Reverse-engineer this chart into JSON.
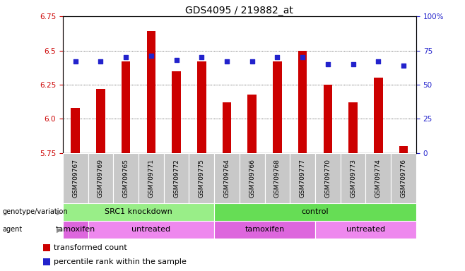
{
  "title": "GDS4095 / 219882_at",
  "samples": [
    "GSM709767",
    "GSM709769",
    "GSM709765",
    "GSM709771",
    "GSM709772",
    "GSM709775",
    "GSM709764",
    "GSM709766",
    "GSM709768",
    "GSM709777",
    "GSM709770",
    "GSM709773",
    "GSM709774",
    "GSM709776"
  ],
  "bar_values": [
    6.08,
    6.22,
    6.42,
    6.64,
    6.35,
    6.42,
    6.12,
    6.18,
    6.42,
    6.5,
    6.25,
    6.12,
    6.3,
    5.8
  ],
  "percentile_values": [
    67,
    67,
    70,
    71,
    68,
    70,
    67,
    67,
    70,
    70,
    65,
    65,
    67,
    64
  ],
  "bar_bottom": 5.75,
  "ylim_left": [
    5.75,
    6.75
  ],
  "ylim_right": [
    0,
    100
  ],
  "yticks_left": [
    5.75,
    6.0,
    6.25,
    6.5,
    6.75
  ],
  "yticks_right": [
    0,
    25,
    50,
    75,
    100
  ],
  "bar_color": "#cc0000",
  "percentile_color": "#2222cc",
  "genotype_groups": [
    {
      "label": "SRC1 knockdown",
      "start": 0,
      "end": 6,
      "color": "#99ee88"
    },
    {
      "label": "control",
      "start": 6,
      "end": 14,
      "color": "#66dd55"
    }
  ],
  "agent_blocks": [
    {
      "start": 0,
      "end": 1,
      "label": "tamoxifen",
      "color": "#dd66dd"
    },
    {
      "start": 1,
      "end": 6,
      "label": "untreated",
      "color": "#ee88ee"
    },
    {
      "start": 6,
      "end": 10,
      "label": "tamoxifen",
      "color": "#dd66dd"
    },
    {
      "start": 10,
      "end": 14,
      "label": "untreated",
      "color": "#ee88ee"
    }
  ],
  "left_ylabel_color": "#cc0000",
  "right_ylabel_color": "#2222cc",
  "bar_width": 0.35
}
